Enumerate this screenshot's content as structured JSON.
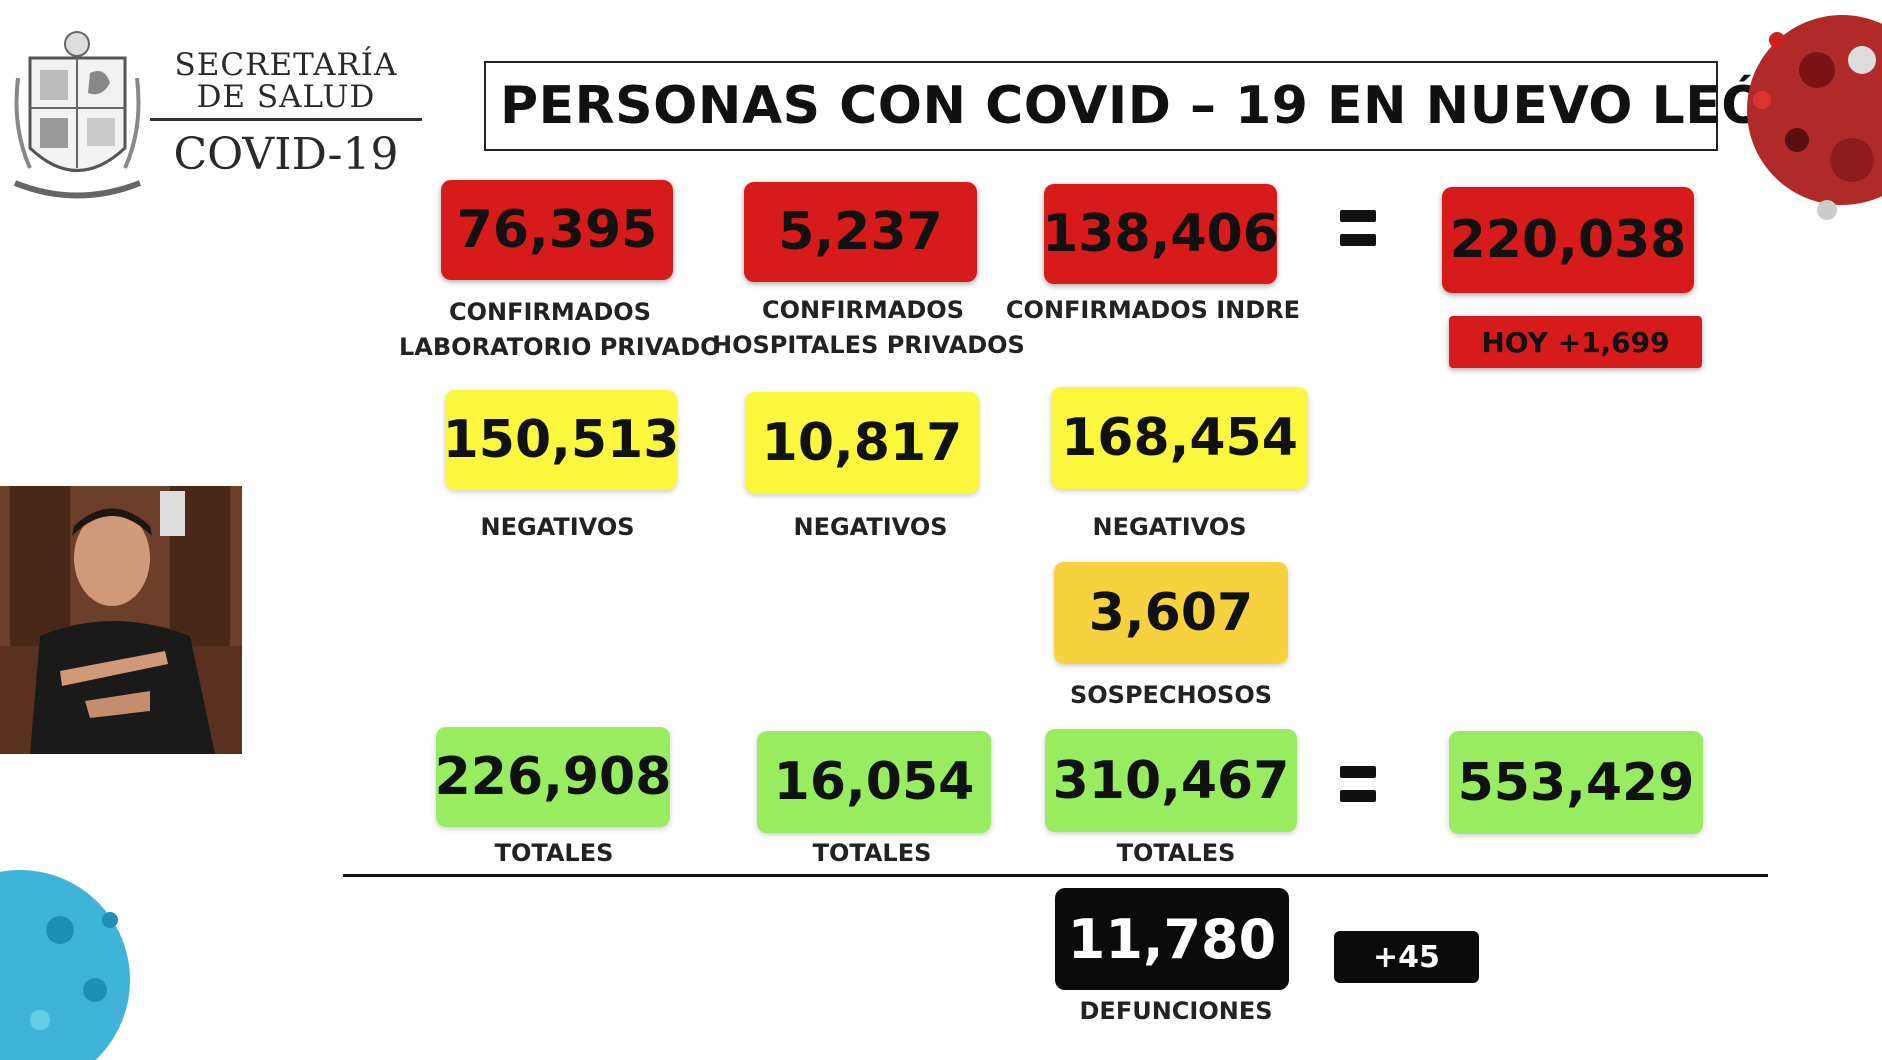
{
  "header": {
    "org_line1": "SECRETARÍA",
    "org_line2": "DE SALUD",
    "org_line3": "COVID-19",
    "title": "PERSONAS CON COVID – 19 EN NUEVO LEÓN"
  },
  "confirmados": {
    "lab_privado": {
      "value": "76,395",
      "label_l1": "CONFIRMADOS",
      "label_l2": "LABORATORIO PRIVADO"
    },
    "hosp_privados": {
      "value": "5,237",
      "label_l1": "CONFIRMADOS",
      "label_l2": "HOSPITALES PRIVADOS"
    },
    "indre": {
      "value": "138,406",
      "label_l1": "CONFIRMADOS INDRE"
    },
    "total": {
      "value": "220,038",
      "today": "HOY +1,699"
    }
  },
  "negativos": {
    "lab_privado": {
      "value": "150,513",
      "label": "NEGATIVOS"
    },
    "hosp_privados": {
      "value": "10,817",
      "label": "NEGATIVOS"
    },
    "indre": {
      "value": "168,454",
      "label": "NEGATIVOS"
    }
  },
  "sospechosos": {
    "value": "3,607",
    "label": "SOSPECHOSOS"
  },
  "totales": {
    "lab_privado": {
      "value": "226,908",
      "label": "TOTALES"
    },
    "hosp_privados": {
      "value": "16,054",
      "label": "TOTALES"
    },
    "indre": {
      "value": "310,467",
      "label": "TOTALES"
    },
    "grand_total": {
      "value": "553,429"
    }
  },
  "defunciones": {
    "value": "11,780",
    "label": "DEFUNCIONES",
    "today": "+45"
  },
  "colors": {
    "confirmed": "#d71a1a",
    "negative": "#fbf73c",
    "suspect": "#f6d23e",
    "total": "#98ec5f",
    "deaths": "#0b0b0b"
  }
}
